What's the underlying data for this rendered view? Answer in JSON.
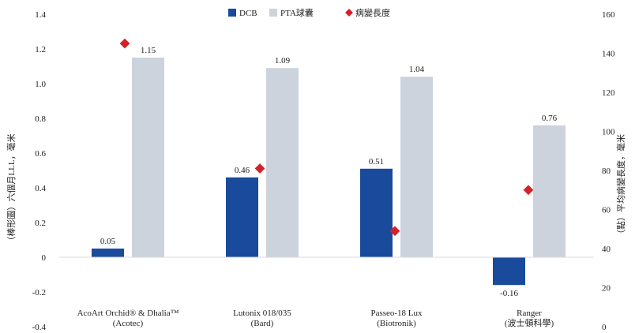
{
  "chart_data": {
    "type": "bar",
    "categories": [
      {
        "line1": "AcoArt Orchid® & Dhalia™",
        "line2": "(Acotec)"
      },
      {
        "line1": "Lutonix 018/035",
        "line2": "(Bard)"
      },
      {
        "line1": "Passeo-18 Lux",
        "line2": "(Biotronik)"
      },
      {
        "line1": "Ranger",
        "line2": "(波士頓科學)"
      }
    ],
    "series": [
      {
        "name": "DCB",
        "color": "#1a4a9c",
        "values": [
          0.05,
          0.46,
          0.51,
          -0.16
        ],
        "labels": [
          "0.05",
          "0.46",
          "0.51",
          "-0.16"
        ]
      },
      {
        "name": "PTA球囊",
        "color": "#cdd3dd",
        "values": [
          1.15,
          1.09,
          1.04,
          0.76
        ],
        "labels": [
          "1.15",
          "1.09",
          "1.04",
          "0.76"
        ]
      }
    ],
    "scatter": {
      "name": "病變長度",
      "color": "#d42128",
      "values": [
        145,
        81,
        49,
        70
      ]
    },
    "ylabel": "（棒形圖）六個月LLL，毫米",
    "y2label": "（點）平均病變長度，毫米",
    "ylim": [
      -0.4,
      1.4
    ],
    "y2lim": [
      0,
      160
    ],
    "yticks": [
      "-0.4",
      "-0.2",
      "0",
      "0.2",
      "0.4",
      "0.6",
      "0.8",
      "1.0",
      "1.2",
      "1.4"
    ],
    "y2ticks": [
      "0",
      "20",
      "40",
      "60",
      "80",
      "100",
      "120",
      "140",
      "160"
    ],
    "legend_position": "top-center",
    "grid": false
  }
}
